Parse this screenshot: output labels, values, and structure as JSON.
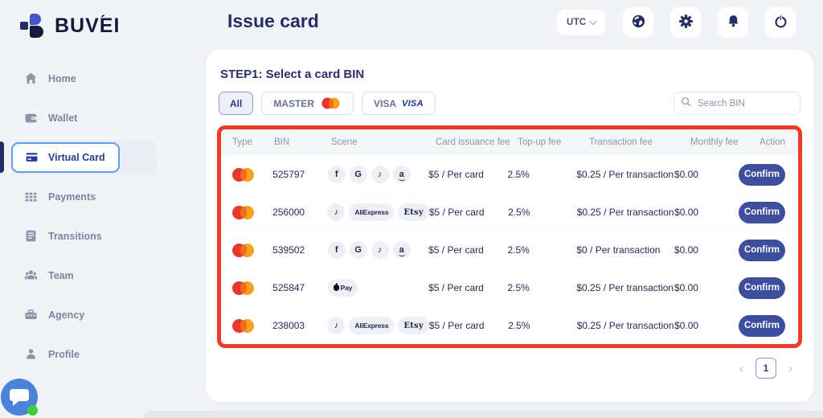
{
  "brand": {
    "name": "BUVEI",
    "accent": "´"
  },
  "sidebar": {
    "items": [
      {
        "label": "Home",
        "icon": "home",
        "active": false
      },
      {
        "label": "Wallet",
        "icon": "wallet",
        "active": false
      },
      {
        "label": "Virtual Card",
        "icon": "virtual-card",
        "active": true
      },
      {
        "label": "Payments",
        "icon": "payments",
        "active": false
      },
      {
        "label": "Transitions",
        "icon": "transitions",
        "active": false
      },
      {
        "label": "Team",
        "icon": "team",
        "active": false
      },
      {
        "label": "Agency",
        "icon": "agency",
        "active": false
      },
      {
        "label": "Profile",
        "icon": "profile",
        "active": false
      }
    ]
  },
  "header": {
    "title": "Issue card",
    "timezone": "UTC",
    "icon_buttons": [
      "globe",
      "settings",
      "notifications",
      "power"
    ]
  },
  "main": {
    "step_title": "STEP1: Select a card BIN",
    "filters": [
      {
        "label": "All",
        "selected": true
      },
      {
        "label": "MASTER",
        "selected": false,
        "logo": "mastercard"
      },
      {
        "label": "VISA",
        "selected": false,
        "logo": "visa",
        "logo_text": "VISA"
      }
    ],
    "search": {
      "placeholder": "Search BIN"
    },
    "table": {
      "columns": [
        "Type",
        "BIN",
        "Scene",
        "Card issuance fee",
        "Top-up fee",
        "Transaction fee",
        "Monthly fee",
        "Action"
      ],
      "rows": [
        {
          "type": "mastercard",
          "bin": "525797",
          "scenes": [
            "facebook",
            "google",
            "tiktok",
            "amazon"
          ],
          "issuance": "$5 / Per card",
          "topup": "2.5%",
          "transaction": "$0.25 / Per transaction",
          "monthly": "$0.00",
          "action": "Confirm"
        },
        {
          "type": "mastercard",
          "bin": "256000",
          "scenes": [
            "tiktok",
            "aliexpress",
            "etsy"
          ],
          "issuance": "$5 / Per card",
          "topup": "2.5%",
          "transaction": "$0.25 / Per transaction",
          "monthly": "$0.00",
          "action": "Confirm"
        },
        {
          "type": "mastercard",
          "bin": "539502",
          "scenes": [
            "facebook",
            "google",
            "tiktok",
            "amazon"
          ],
          "issuance": "$5 / Per card",
          "topup": "2.5%",
          "transaction": "$0 / Per transaction",
          "monthly": "$0.00",
          "action": "Confirm"
        },
        {
          "type": "mastercard",
          "bin": "525847",
          "scenes": [
            "applepay"
          ],
          "issuance": "$5 / Per card",
          "topup": "2.5%",
          "transaction": "$0.25 / Per transaction",
          "monthly": "$0.00",
          "action": "Confirm"
        },
        {
          "type": "mastercard",
          "bin": "238003",
          "scenes": [
            "tiktok",
            "aliexpress",
            "etsy"
          ],
          "issuance": "$5 / Per card",
          "topup": "2.5%",
          "transaction": "$0.25 / Per transaction",
          "monthly": "$0.00",
          "action": "Confirm"
        }
      ]
    },
    "pagination": {
      "prev": "‹",
      "page": "1",
      "next": "›"
    }
  },
  "scene_icons": {
    "facebook": {
      "kind": "circle",
      "glyph": "f"
    },
    "google": {
      "kind": "circle",
      "glyph": "G"
    },
    "tiktok": {
      "kind": "circle",
      "glyph": "♪"
    },
    "amazon": {
      "kind": "circle",
      "glyph": "a",
      "smile": true
    },
    "aliexpress": {
      "kind": "pill",
      "glyph": "AliExpress"
    },
    "etsy": {
      "kind": "pill etsy-font",
      "glyph": "Etsy"
    },
    "applepay": {
      "kind": "pill",
      "glyph": "Pay",
      "apple": true
    }
  },
  "colors": {
    "annotation_red": "#ea3e2b",
    "navy": "#232e64",
    "confirm_button": "#3d4e9e",
    "active_border": "#5e9fe6"
  }
}
